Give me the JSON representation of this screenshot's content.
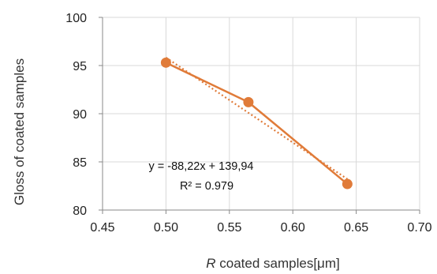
{
  "chart_data": {
    "type": "scatter",
    "xlabel_italic": "R",
    "xlabel_rest": " coated samples[μm]",
    "ylabel": "Gloss of coated samples",
    "xlim": [
      0.45,
      0.7
    ],
    "ylim": [
      80,
      100
    ],
    "x_ticks": [
      "0.45",
      "0.50",
      "0.55",
      "0.60",
      "0.65",
      "0.70"
    ],
    "y_ticks": [
      "80",
      "85",
      "90",
      "95",
      "100"
    ],
    "grid": true,
    "series": [
      {
        "x": [
          0.5,
          0.565,
          0.643
        ],
        "y": [
          95.3,
          91.2,
          82.7
        ],
        "color": "#E07B39"
      }
    ],
    "trendline": {
      "slope": -88.22,
      "intercept": 139.94,
      "equation": "y = -88,22x + 139,94",
      "r2": "R² = 0.979",
      "color": "#E07B39"
    }
  }
}
